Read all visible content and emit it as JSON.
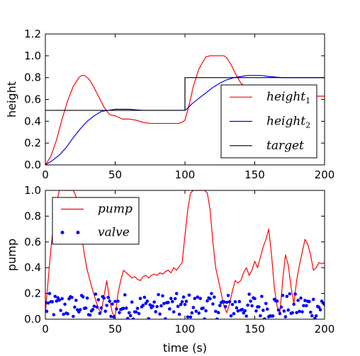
{
  "chart_data": [
    {
      "type": "line",
      "title": "",
      "xlabel": "",
      "ylabel": "height",
      "xlim": [
        0,
        200
      ],
      "ylim": [
        0,
        1.2
      ],
      "xticks": [
        0,
        50,
        100,
        150,
        200
      ],
      "yticks": [
        0.0,
        0.2,
        0.4,
        0.6,
        0.8,
        1.0,
        1.2
      ],
      "grid": false,
      "legend_position": "lower-right",
      "series": [
        {
          "name": "height",
          "subscript": "1",
          "color": "#ff0000",
          "x": [
            0,
            4,
            8,
            12,
            16,
            20,
            24,
            26,
            28,
            31,
            34,
            38,
            42,
            46,
            50,
            55,
            60,
            65,
            70,
            75,
            80,
            85,
            90,
            95,
            98,
            100,
            103,
            106,
            110,
            115,
            118,
            120,
            122,
            125,
            128,
            130,
            133,
            136,
            140,
            145,
            150,
            160,
            170,
            180,
            190,
            195,
            200
          ],
          "y": [
            0.0,
            0.08,
            0.23,
            0.42,
            0.59,
            0.72,
            0.8,
            0.82,
            0.82,
            0.79,
            0.73,
            0.63,
            0.53,
            0.46,
            0.45,
            0.42,
            0.42,
            0.41,
            0.39,
            0.38,
            0.38,
            0.38,
            0.38,
            0.38,
            0.39,
            0.41,
            0.55,
            0.72,
            0.88,
            0.99,
            1.0,
            1.0,
            1.0,
            1.0,
            1.0,
            0.98,
            0.92,
            0.84,
            0.75,
            0.7,
            0.67,
            0.66,
            0.64,
            0.64,
            0.64,
            0.63,
            0.63
          ]
        },
        {
          "name": "height",
          "subscript": "2",
          "color": "#0000ff",
          "x": [
            0,
            5,
            10,
            15,
            20,
            25,
            30,
            35,
            40,
            45,
            50,
            60,
            70,
            80,
            90,
            100,
            102,
            105,
            110,
            115,
            120,
            125,
            130,
            135,
            140,
            145,
            150,
            155,
            160,
            170,
            180,
            190,
            200
          ],
          "y": [
            0.0,
            0.04,
            0.09,
            0.16,
            0.25,
            0.33,
            0.4,
            0.45,
            0.49,
            0.5,
            0.51,
            0.51,
            0.5,
            0.5,
            0.5,
            0.5,
            0.52,
            0.56,
            0.61,
            0.66,
            0.71,
            0.75,
            0.78,
            0.8,
            0.81,
            0.82,
            0.82,
            0.82,
            0.81,
            0.8,
            0.8,
            0.8,
            0.8
          ]
        },
        {
          "name": "target",
          "color": "#000000",
          "x": [
            0,
            100,
            100,
            200
          ],
          "y": [
            0.5,
            0.5,
            0.8,
            0.8
          ]
        }
      ]
    },
    {
      "type": "line",
      "title": "",
      "xlabel": "time (s)",
      "ylabel": "pump",
      "xlim": [
        0,
        200
      ],
      "ylim": [
        0,
        1.0
      ],
      "xticks": [
        0,
        50,
        100,
        150,
        200
      ],
      "yticks": [
        0.0,
        0.2,
        0.4,
        0.6,
        0.8,
        1.0
      ],
      "grid": false,
      "legend_position": "upper-left",
      "series": [
        {
          "name": "pump",
          "color": "#ff0000",
          "x": [
            0,
            2,
            4,
            6,
            8,
            10,
            12,
            14,
            16,
            18,
            20,
            22,
            24,
            26,
            28,
            30,
            32,
            34,
            36,
            38,
            40,
            42,
            44,
            46,
            48,
            50,
            52,
            54,
            56,
            58,
            60,
            62,
            64,
            66,
            68,
            70,
            72,
            74,
            76,
            78,
            80,
            82,
            84,
            86,
            88,
            90,
            92,
            94,
            96,
            98,
            100,
            102,
            104,
            106,
            108,
            110,
            112,
            114,
            116,
            118,
            120,
            122,
            124,
            126,
            128,
            130,
            132,
            134,
            136,
            138,
            140,
            142,
            144,
            146,
            148,
            150,
            152,
            154,
            156,
            158,
            160,
            162,
            164,
            166,
            168,
            170,
            172,
            174,
            176,
            178,
            180,
            182,
            184,
            186,
            188,
            190,
            192,
            194,
            196,
            198,
            200
          ],
          "y": [
            0.05,
            0.3,
            0.55,
            0.75,
            0.9,
            1.0,
            1.0,
            1.0,
            1.0,
            1.0,
            1.0,
            0.95,
            0.8,
            0.65,
            0.5,
            0.38,
            0.3,
            0.22,
            0.15,
            0.08,
            0.05,
            0.18,
            0.3,
            0.15,
            0.05,
            0.02,
            0.2,
            0.3,
            0.38,
            0.36,
            0.34,
            0.32,
            0.33,
            0.31,
            0.3,
            0.33,
            0.34,
            0.32,
            0.34,
            0.35,
            0.34,
            0.36,
            0.35,
            0.37,
            0.38,
            0.36,
            0.4,
            0.38,
            0.41,
            0.44,
            0.65,
            0.85,
            0.98,
            1.0,
            1.0,
            1.0,
            1.0,
            1.0,
            0.98,
            0.85,
            0.6,
            0.4,
            0.3,
            0.2,
            0.1,
            0.05,
            0.12,
            0.22,
            0.3,
            0.28,
            0.3,
            0.36,
            0.4,
            0.34,
            0.38,
            0.45,
            0.4,
            0.48,
            0.56,
            0.62,
            0.7,
            0.5,
            0.25,
            0.1,
            0.05,
            0.3,
            0.5,
            0.42,
            0.25,
            0.12,
            0.3,
            0.42,
            0.52,
            0.62,
            0.58,
            0.5,
            0.38,
            0.4,
            0.44,
            0.43,
            0.44
          ]
        },
        {
          "name": "valve",
          "color": "#0000ff",
          "marker": "dot",
          "x": [],
          "y": []
        }
      ]
    }
  ]
}
